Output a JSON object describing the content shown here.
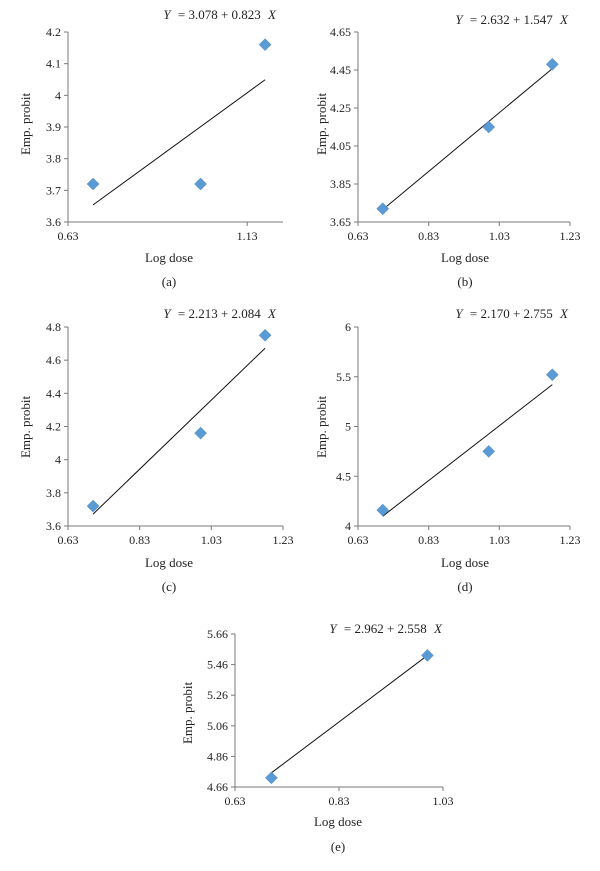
{
  "chart_data": [
    {
      "type": "scatter",
      "panel_label": "(a)",
      "equation": {
        "y": "Y",
        "rhs": "= 3.078 + 0.823",
        "x": "X"
      },
      "xlabel": "Log dose",
      "ylabel": "Emp. probit",
      "xlim": [
        0.63,
        1.23
      ],
      "ylim": [
        3.6,
        4.2
      ],
      "x_ticks": [
        "0.63",
        "1.13"
      ],
      "y_ticks": [
        "3.6",
        "3.7",
        "3.8",
        "3.9",
        "4",
        "4.1",
        "4.2"
      ],
      "points": [
        {
          "x": 0.7,
          "y": 3.72
        },
        {
          "x": 1.0,
          "y": 3.72
        },
        {
          "x": 1.18,
          "y": 4.16
        }
      ],
      "fit_line": {
        "intercept": 3.078,
        "slope": 0.823,
        "x_range": [
          0.7,
          1.18
        ]
      },
      "marker_color": "#5b9bd5"
    },
    {
      "type": "scatter",
      "panel_label": "(b)",
      "equation": {
        "y": "Y",
        "rhs": "= 2.632 + 1.547",
        "x": "X"
      },
      "xlabel": "Log dose",
      "ylabel": "Emp. probit",
      "xlim": [
        0.63,
        1.23
      ],
      "ylim": [
        3.65,
        4.65
      ],
      "x_ticks": [
        "0.63",
        "0.83",
        "1.03",
        "1.23"
      ],
      "y_ticks": [
        "3.65",
        "3.85",
        "4.05",
        "4.25",
        "4.45",
        "4.65"
      ],
      "points": [
        {
          "x": 0.7,
          "y": 3.72
        },
        {
          "x": 1.0,
          "y": 4.15
        },
        {
          "x": 1.18,
          "y": 4.48
        }
      ],
      "fit_line": {
        "intercept": 2.632,
        "slope": 1.547,
        "x_range": [
          0.7,
          1.18
        ]
      },
      "marker_color": "#5b9bd5"
    },
    {
      "type": "scatter",
      "panel_label": "(c)",
      "equation": {
        "y": "Y",
        "rhs": "= 2.213 + 2.084",
        "x": "X"
      },
      "xlabel": "Log dose",
      "ylabel": "Emp. probit",
      "xlim": [
        0.63,
        1.23
      ],
      "ylim": [
        3.6,
        4.8
      ],
      "x_ticks": [
        "0.63",
        "0.83",
        "1.03",
        "1.23"
      ],
      "y_ticks": [
        "3.6",
        "3.8",
        "4",
        "4.2",
        "4.4",
        "4.6",
        "4.8"
      ],
      "points": [
        {
          "x": 0.7,
          "y": 3.72
        },
        {
          "x": 1.0,
          "y": 4.16
        },
        {
          "x": 1.18,
          "y": 4.75
        }
      ],
      "fit_line": {
        "intercept": 2.213,
        "slope": 2.084,
        "x_range": [
          0.7,
          1.18
        ]
      },
      "marker_color": "#5b9bd5"
    },
    {
      "type": "scatter",
      "panel_label": "(d)",
      "equation": {
        "y": "Y",
        "rhs": "= 2.170 + 2.755",
        "x": "X"
      },
      "xlabel": "Log dose",
      "ylabel": "Emp. probit",
      "xlim": [
        0.63,
        1.23
      ],
      "ylim": [
        4,
        6
      ],
      "x_ticks": [
        "0.63",
        "0.83",
        "1.03",
        "1.23"
      ],
      "y_ticks": [
        "4",
        "4.5",
        "5",
        "5.5",
        "6"
      ],
      "points": [
        {
          "x": 0.7,
          "y": 4.16
        },
        {
          "x": 1.0,
          "y": 4.75
        },
        {
          "x": 1.18,
          "y": 5.52
        }
      ],
      "fit_line": {
        "intercept": 2.17,
        "slope": 2.755,
        "x_range": [
          0.7,
          1.18
        ]
      },
      "marker_color": "#5b9bd5"
    },
    {
      "type": "scatter",
      "panel_label": "(e)",
      "equation": {
        "y": "Y",
        "rhs": "= 2.962 + 2.558",
        "x": "X"
      },
      "xlabel": "Log dose",
      "ylabel": "Emp. probit",
      "xlim": [
        0.63,
        1.03
      ],
      "ylim": [
        4.66,
        5.66
      ],
      "x_ticks": [
        "0.63",
        "0.83",
        "1.03"
      ],
      "y_ticks": [
        "4.66",
        "4.86",
        "5.06",
        "5.26",
        "5.46",
        "5.66"
      ],
      "points": [
        {
          "x": 0.7,
          "y": 4.72
        },
        {
          "x": 1.0,
          "y": 5.52
        }
      ],
      "fit_line": {
        "intercept": 2.962,
        "slope": 2.558,
        "x_range": [
          0.7,
          1.0
        ]
      },
      "marker_color": "#5b9bd5"
    }
  ]
}
